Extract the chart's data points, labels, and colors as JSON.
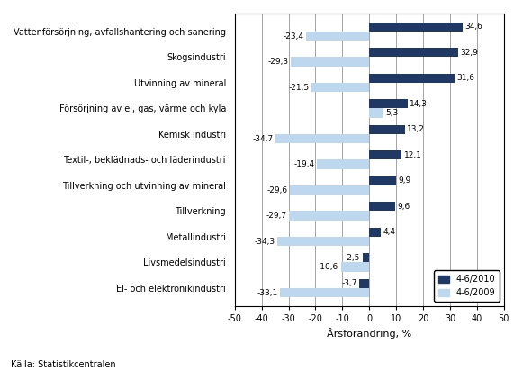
{
  "categories": [
    "El- och elektronikindustri",
    "Livsmedelsindustri",
    "Metallindustri",
    "Tillverkning",
    "Tillverkning och utvinning av mineral",
    "Textil-, beklädnads- och läderindustri",
    "Kemisk industri",
    "Försörjning av el, gas, värme och kyla",
    "Utvinning av mineral",
    "Skogsindustri",
    "Vattenförsörjning, avfallshantering och sanering"
  ],
  "values_2010": [
    -3.7,
    -2.5,
    4.4,
    9.6,
    9.9,
    12.1,
    13.2,
    14.3,
    31.6,
    32.9,
    34.6
  ],
  "values_2009": [
    -33.1,
    -10.6,
    -34.3,
    -29.7,
    -29.6,
    -19.4,
    -34.7,
    5.3,
    -21.5,
    -29.3,
    -23.4
  ],
  "color_2010": "#1F3864",
  "color_2009": "#BDD7EE",
  "xlabel": "Årsförändring, %",
  "legend_2010": "4-6/2010",
  "legend_2009": "4-6/2009",
  "source": "Källa: Statistikcentralen",
  "xlim": [
    -50,
    50
  ],
  "xticks": [
    -50,
    -40,
    -30,
    -20,
    -10,
    0,
    10,
    20,
    30,
    40,
    50
  ]
}
